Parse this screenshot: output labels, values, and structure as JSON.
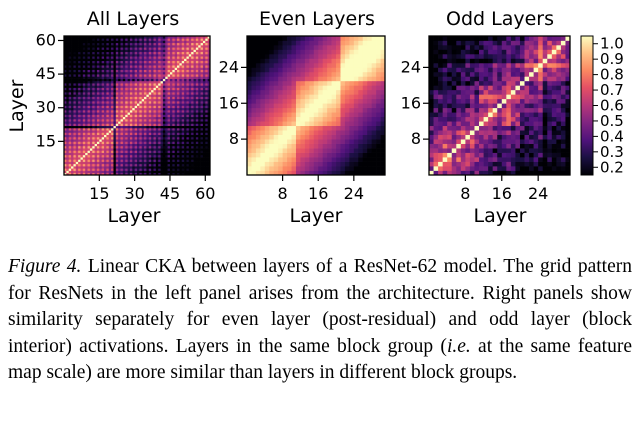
{
  "chart_data": [
    {
      "type": "heatmap",
      "title": "All Layers",
      "xlabel": "Layer",
      "ylabel": "Layer",
      "n": 62,
      "xticks": [
        15,
        30,
        45,
        60
      ],
      "yticks": [
        15,
        30,
        45,
        60
      ],
      "block_boundaries": [
        21,
        42
      ],
      "value_range": [
        0.15,
        1.0
      ],
      "pattern": "grid"
    },
    {
      "type": "heatmap",
      "title": "Even Layers",
      "xlabel": "Layer",
      "ylabel": "",
      "n": 31,
      "xticks": [
        8,
        16,
        24
      ],
      "yticks": [
        8,
        16,
        24
      ],
      "block_boundaries": [
        11,
        21
      ],
      "value_range": [
        0.15,
        1.0
      ],
      "pattern": "smooth"
    },
    {
      "type": "heatmap",
      "title": "Odd Layers",
      "xlabel": "Layer",
      "ylabel": "",
      "n": 31,
      "xticks": [
        8,
        16,
        24
      ],
      "yticks": [
        8,
        16,
        24
      ],
      "block_boundaries": [
        11,
        21
      ],
      "value_range": [
        0.05,
        1.0
      ],
      "pattern": "noisy"
    }
  ],
  "colorbar": {
    "ticks": [
      "0.2",
      "0.3",
      "0.4",
      "0.5",
      "0.6",
      "0.7",
      "0.8",
      "0.9",
      "1.0"
    ],
    "colormap": "magma"
  },
  "caption": {
    "lead": "Figure 4.",
    "part1": " Linear CKA between layers of a ResNet-62 model. The grid pattern for ResNets in the left panel arises from the architecture. Right panels show similarity separately for even layer (post-residual) and odd layer (block interior) activations. Layers in the same block group (",
    "ie": "i.e.",
    "part2": " at the same feature map scale) are more similar than layers in different block groups."
  }
}
